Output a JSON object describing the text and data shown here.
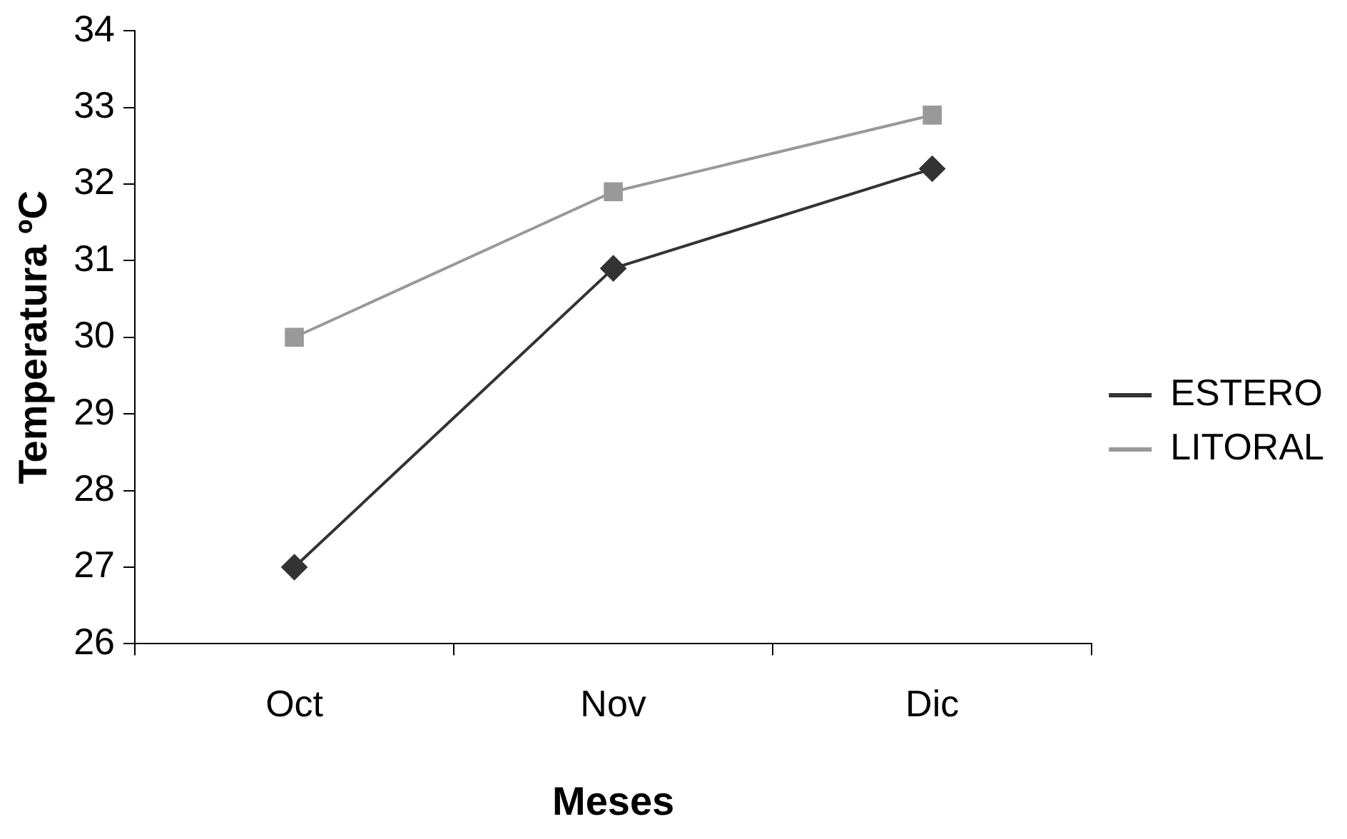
{
  "chart_data": {
    "type": "line",
    "xlabel": "Meses",
    "ylabel": "Temperatura ºC",
    "categories": [
      "Oct",
      "Nov",
      "Dic"
    ],
    "series": [
      {
        "name": "ESTERO",
        "color": "#333333",
        "marker": "diamond",
        "values": [
          27,
          30.9,
          32.2
        ]
      },
      {
        "name": "LITORAL",
        "color": "#999999",
        "marker": "square",
        "values": [
          30,
          31.9,
          32.9
        ]
      }
    ],
    "ylim": [
      26,
      34
    ],
    "yticks": [
      26,
      27,
      28,
      29,
      30,
      31,
      32,
      33,
      34
    ],
    "grid": false,
    "legend": "right",
    "line_style": "solid"
  }
}
